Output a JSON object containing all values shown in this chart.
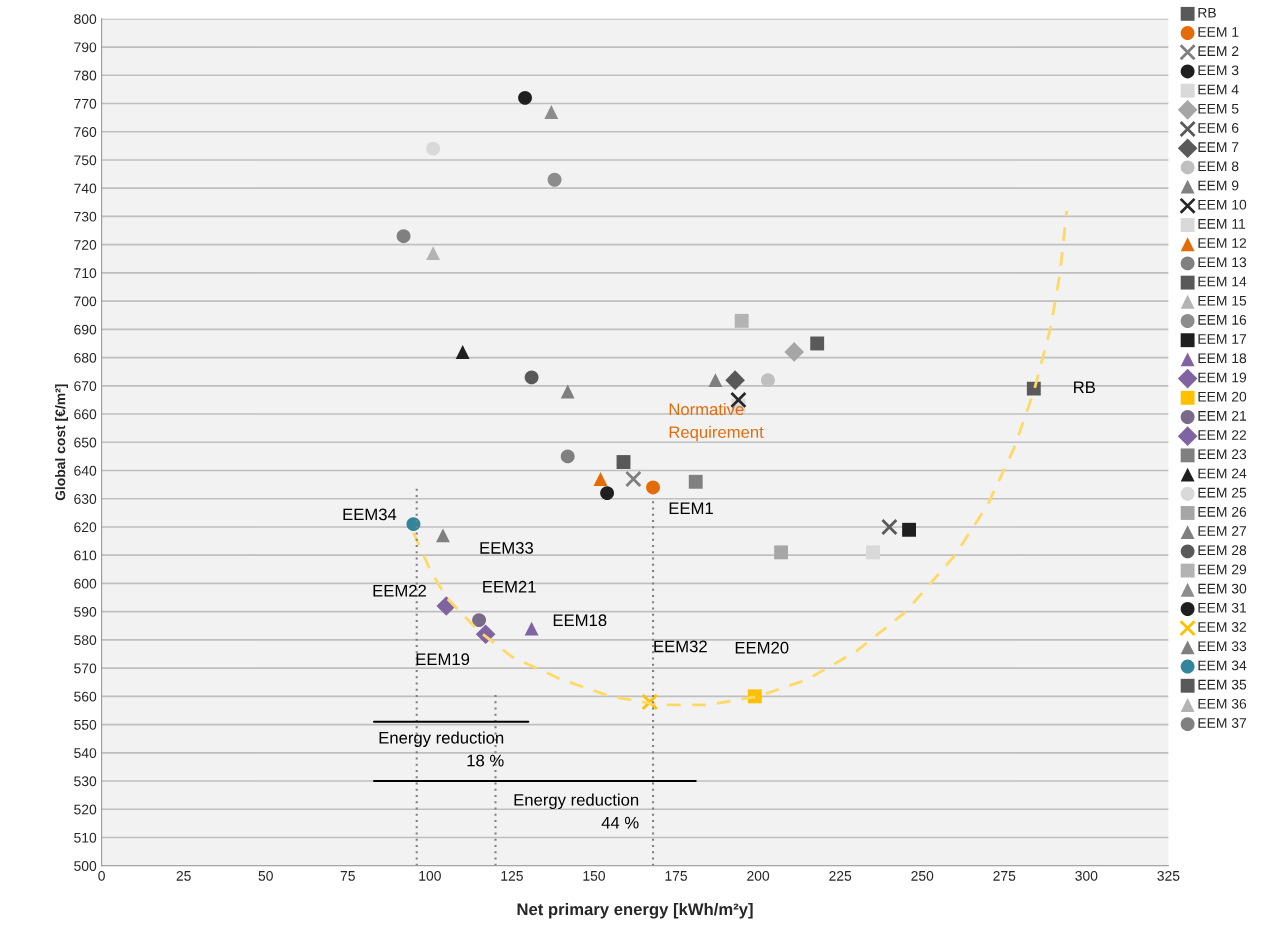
{
  "chart_data": {
    "type": "scatter",
    "xlabel": "Net primary energy [kWh/m²y]",
    "ylabel": "Global cost [€/m²]",
    "xlim": [
      0,
      325
    ],
    "xticks": [
      0,
      25,
      50,
      75,
      100,
      125,
      150,
      175,
      200,
      225,
      250,
      275,
      300,
      325
    ],
    "ylim": [
      500,
      800
    ],
    "yticks": [
      500,
      510,
      520,
      530,
      540,
      550,
      560,
      570,
      580,
      590,
      600,
      610,
      620,
      630,
      640,
      650,
      660,
      670,
      680,
      690,
      700,
      710,
      720,
      730,
      740,
      750,
      760,
      770,
      780,
      790,
      800
    ],
    "grid": "y",
    "legend": "right",
    "series": [
      {
        "name": "RB",
        "color": "#595959",
        "marker": "square",
        "x": [
          284
        ],
        "values": [
          669
        ]
      },
      {
        "name": "EEM 1",
        "color": "#e36c09",
        "marker": "circle",
        "x": [
          168
        ],
        "values": [
          634
        ]
      },
      {
        "name": "EEM 2",
        "color": "#7f7f7f",
        "marker": "cross",
        "x": [
          162
        ],
        "values": [
          637
        ]
      },
      {
        "name": "EEM 3",
        "color": "#1f1f1f",
        "marker": "circle",
        "x": [
          154
        ],
        "values": [
          632
        ]
      },
      {
        "name": "EEM 4",
        "color": "#d9d9d9",
        "marker": "square",
        "x": [
          194
        ],
        "values": [
          663
        ]
      },
      {
        "name": "EEM 5",
        "color": "#a6a6a6",
        "marker": "diamond",
        "x": [
          211
        ],
        "values": [
          682
        ]
      },
      {
        "name": "EEM 6",
        "color": "#595959",
        "marker": "cross",
        "x": [
          240
        ],
        "values": [
          620
        ]
      },
      {
        "name": "EEM 7",
        "color": "#595959",
        "marker": "diamond",
        "x": [
          193
        ],
        "values": [
          672
        ]
      },
      {
        "name": "EEM 8",
        "color": "#bfbfbf",
        "marker": "circle",
        "x": [
          203
        ],
        "values": [
          672
        ]
      },
      {
        "name": "EEM 9",
        "color": "#808080",
        "marker": "triangle",
        "x": [
          187
        ],
        "values": [
          672
        ]
      },
      {
        "name": "EEM 10",
        "color": "#262626",
        "marker": "cross",
        "x": [
          194
        ],
        "values": [
          665
        ]
      },
      {
        "name": "EEM 11",
        "color": "#d9d9d9",
        "marker": "square",
        "x": [
          235
        ],
        "values": [
          611
        ]
      },
      {
        "name": "EEM 12",
        "color": "#e36c09",
        "marker": "triangle",
        "x": [
          152
        ],
        "values": [
          637
        ]
      },
      {
        "name": "EEM 13",
        "color": "#808080",
        "marker": "circle",
        "x": [
          142
        ],
        "values": [
          645
        ]
      },
      {
        "name": "EEM 14",
        "color": "#595959",
        "marker": "square",
        "x": [
          218
        ],
        "values": [
          685
        ]
      },
      {
        "name": "EEM 15",
        "color": "#b3b3b3",
        "marker": "triangle",
        "x": [
          101
        ],
        "values": [
          717
        ]
      },
      {
        "name": "EEM 16",
        "color": "#8c8c8c",
        "marker": "circle",
        "x": [
          138
        ],
        "values": [
          743
        ]
      },
      {
        "name": "EEM 17",
        "color": "#1f1f1f",
        "marker": "square",
        "x": [
          246
        ],
        "values": [
          619
        ]
      },
      {
        "name": "EEM 18",
        "color": "#8064a2",
        "marker": "triangle",
        "x": [
          131
        ],
        "values": [
          584
        ]
      },
      {
        "name": "EEM 19",
        "color": "#8064a2",
        "marker": "diamond",
        "x": [
          117
        ],
        "values": [
          582
        ]
      },
      {
        "name": "EEM 20",
        "color": "#ffc000",
        "marker": "square",
        "x": [
          199
        ],
        "values": [
          560
        ]
      },
      {
        "name": "EEM 21",
        "color": "#7a6a8a",
        "marker": "circle",
        "x": [
          115
        ],
        "values": [
          587
        ]
      },
      {
        "name": "EEM 22",
        "color": "#8064a2",
        "marker": "diamond",
        "x": [
          105
        ],
        "values": [
          592
        ]
      },
      {
        "name": "EEM 23",
        "color": "#808080",
        "marker": "square",
        "x": [
          181
        ],
        "values": [
          636
        ]
      },
      {
        "name": "EEM 24",
        "color": "#1f1f1f",
        "marker": "triangle",
        "x": [
          110
        ],
        "values": [
          682
        ]
      },
      {
        "name": "EEM 25",
        "color": "#d9d9d9",
        "marker": "circle",
        "x": [
          101
        ],
        "values": [
          754
        ]
      },
      {
        "name": "EEM 26",
        "color": "#a6a6a6",
        "marker": "square",
        "x": [
          207
        ],
        "values": [
          611
        ]
      },
      {
        "name": "EEM 27",
        "color": "#808080",
        "marker": "triangle",
        "x": [
          142
        ],
        "values": [
          668
        ]
      },
      {
        "name": "EEM 28",
        "color": "#595959",
        "marker": "circle",
        "x": [
          131
        ],
        "values": [
          673
        ]
      },
      {
        "name": "EEM 29",
        "color": "#b3b3b3",
        "marker": "square",
        "x": [
          195
        ],
        "values": [
          693
        ]
      },
      {
        "name": "EEM 30",
        "color": "#8c8c8c",
        "marker": "triangle",
        "x": [
          137
        ],
        "values": [
          767
        ]
      },
      {
        "name": "EEM 31",
        "color": "#1f1f1f",
        "marker": "circle",
        "x": [
          129
        ],
        "values": [
          772
        ]
      },
      {
        "name": "EEM 32",
        "color": "#ffc000",
        "marker": "cross",
        "x": [
          167
        ],
        "values": [
          558
        ]
      },
      {
        "name": "EEM 33",
        "color": "#808080",
        "marker": "triangle",
        "x": [
          104
        ],
        "values": [
          617
        ]
      },
      {
        "name": "EEM 34",
        "color": "#31859c",
        "marker": "circle",
        "x": [
          95
        ],
        "values": [
          621
        ]
      },
      {
        "name": "EEM 35",
        "color": "#595959",
        "marker": "square",
        "x": [
          159
        ],
        "values": [
          643
        ]
      },
      {
        "name": "EEM 36",
        "color": "#b3b3b3",
        "marker": "triangle",
        "x": [
          null
        ],
        "values": [
          null
        ]
      },
      {
        "name": "EEM 37",
        "color": "#808080",
        "marker": "circle",
        "x": [
          92
        ],
        "values": [
          723
        ]
      },
      {
        "type": "line",
        "color": "#ffd966",
        "line_style": "dashed",
        "x": [
          95,
          100,
          105,
          115,
          125,
          140,
          155,
          170,
          185,
          200,
          215,
          230,
          245,
          260,
          270,
          278,
          284,
          289,
          292,
          294
        ],
        "values": [
          618,
          605,
          595,
          583,
          574,
          566,
          560,
          557,
          557,
          560,
          566,
          576,
          590,
          610,
          628,
          648,
          668,
          690,
          710,
          732
        ]
      },
      {
        "type": "line",
        "color": "#7f7f7f",
        "line_style": "dotted",
        "x": [
          96,
          96
        ],
        "values": [
          500,
          635
        ]
      },
      {
        "type": "line",
        "color": "#7f7f7f",
        "line_style": "dotted",
        "x": [
          120,
          120
        ],
        "values": [
          500,
          561
        ]
      },
      {
        "type": "line",
        "color": "#7f7f7f",
        "line_style": "dotted",
        "x": [
          168,
          168
        ],
        "values": [
          500,
          630
        ]
      },
      {
        "type": "line",
        "color": "#000000",
        "line_style": "solid",
        "x": [
          83,
          130
        ],
        "values": [
          551,
          551
        ]
      },
      {
        "type": "line",
        "color": "#000000",
        "line_style": "solid",
        "x": [
          83,
          181
        ],
        "values": [
          530,
          530
        ]
      }
    ],
    "annotations": [
      {
        "text": "RB",
        "x": 284,
        "y": 669
      },
      {
        "text": "EEM1",
        "x": 168,
        "y": 634
      },
      {
        "text": "Normative\nRequirement",
        "x": 168,
        "y": 634
      },
      {
        "text": "EEM34",
        "x": 95,
        "y": 621
      },
      {
        "text": "EEM33",
        "x": 104,
        "y": 617
      },
      {
        "text": "EEM22",
        "x": 105,
        "y": 592
      },
      {
        "text": "EEM21",
        "x": 115,
        "y": 587
      },
      {
        "text": "EEM18",
        "x": 131,
        "y": 584
      },
      {
        "text": "EEM19",
        "x": 117,
        "y": 582
      },
      {
        "text": "EEM32",
        "x": 167,
        "y": 558
      },
      {
        "text": "EEM20",
        "x": 199,
        "y": 560
      },
      {
        "text": "Energy reduction\n18 %",
        "x": 96,
        "y": 551
      },
      {
        "text": "Energy reduction\n44 %",
        "x": 168,
        "y": 530
      }
    ]
  }
}
